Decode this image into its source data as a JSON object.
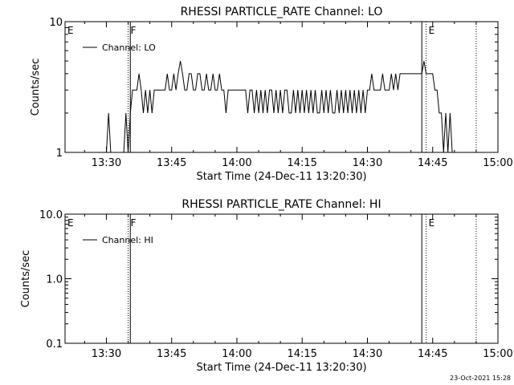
{
  "footer": {
    "timestamp": "23-Oct-2021 15:28"
  },
  "chart_data": [
    {
      "type": "line",
      "title": "RHESSI PARTICLE_RATE Channel: LO",
      "xlabel": "Start Time (24-Dec-11 13:20:30)",
      "ylabel": "Counts/sec",
      "yscale": "log",
      "ylim": [
        1,
        10
      ],
      "xlim": [
        "13:20:30",
        "15:00"
      ],
      "xticks": [
        "13:30",
        "13:45",
        "14:00",
        "14:15",
        "14:30",
        "14:45",
        "15:00"
      ],
      "yticks": [
        "1",
        "10"
      ],
      "legend": "Channel: LO",
      "legend_position": "top-left",
      "markers": [
        {
          "label": "E",
          "time": "13:20:30",
          "style": "dotted"
        },
        {
          "label": "F",
          "time": "13:35:00",
          "style": "dotted"
        },
        {
          "label": "",
          "time": "13:35:30",
          "style": "solid"
        },
        {
          "label": "",
          "time": "14:42:30",
          "style": "solid"
        },
        {
          "label": "E",
          "time": "14:43:30",
          "style": "dotted"
        },
        {
          "label": "",
          "time": "14:55:00",
          "style": "dotted"
        }
      ],
      "series": [
        {
          "name": "Channel: LO",
          "x": [
            "13:30:00",
            "13:30:30",
            "13:31:00",
            "13:34:00",
            "13:34:30",
            "13:35:00",
            "13:35:30",
            "13:36:00",
            "13:36:30",
            "13:37:00",
            "13:37:30",
            "13:38:00",
            "13:38:30",
            "13:39:00",
            "13:39:30",
            "13:40:00",
            "13:40:30",
            "13:41:00",
            "13:41:30",
            "13:42:00",
            "13:42:30",
            "13:43:00",
            "13:43:30",
            "13:44:00",
            "13:44:30",
            "13:45:00",
            "13:45:30",
            "13:46:00",
            "13:46:30",
            "13:47:00",
            "13:47:30",
            "13:48:00",
            "13:48:30",
            "13:49:00",
            "13:49:30",
            "13:50:00",
            "13:50:30",
            "13:51:00",
            "13:51:30",
            "13:52:00",
            "13:52:30",
            "13:53:00",
            "13:53:30",
            "13:54:00",
            "13:54:30",
            "13:55:00",
            "13:55:30",
            "13:56:00",
            "13:56:30",
            "13:57:00",
            "13:57:30",
            "13:58:00",
            "13:58:30",
            "13:59:00",
            "13:59:30",
            "14:00:00",
            "14:00:30",
            "14:01:00",
            "14:01:30",
            "14:02:00",
            "14:02:30",
            "14:03:00",
            "14:03:30",
            "14:04:00",
            "14:04:30",
            "14:05:00",
            "14:05:30",
            "14:06:00",
            "14:06:30",
            "14:07:00",
            "14:07:30",
            "14:08:00",
            "14:08:30",
            "14:09:00",
            "14:09:30",
            "14:10:00",
            "14:10:30",
            "14:11:00",
            "14:11:30",
            "14:12:00",
            "14:12:30",
            "14:13:00",
            "14:13:30",
            "14:14:00",
            "14:14:30",
            "14:15:00",
            "14:15:30",
            "14:16:00",
            "14:16:30",
            "14:17:00",
            "14:17:30",
            "14:18:00",
            "14:18:30",
            "14:19:00",
            "14:19:30",
            "14:20:00",
            "14:20:30",
            "14:21:00",
            "14:21:30",
            "14:22:00",
            "14:22:30",
            "14:23:00",
            "14:23:30",
            "14:24:00",
            "14:24:30",
            "14:25:00",
            "14:25:30",
            "14:26:00",
            "14:26:30",
            "14:27:00",
            "14:27:30",
            "14:28:00",
            "14:28:30",
            "14:29:00",
            "14:29:30",
            "14:30:00",
            "14:30:30",
            "14:31:00",
            "14:31:30",
            "14:32:00",
            "14:32:30",
            "14:33:00",
            "14:33:30",
            "14:34:00",
            "14:34:30",
            "14:35:00",
            "14:35:30",
            "14:36:00",
            "14:36:30",
            "14:37:00",
            "14:37:30",
            "14:38:00",
            "14:38:30",
            "14:39:00",
            "14:39:30",
            "14:40:00",
            "14:40:30",
            "14:41:00",
            "14:41:30",
            "14:42:00",
            "14:42:30",
            "14:43:00",
            "14:43:30",
            "14:44:00",
            "14:44:30",
            "14:45:00",
            "14:45:30",
            "14:46:00",
            "14:46:30",
            "14:47:00",
            "14:47:30",
            "14:48:00",
            "14:48:30",
            "14:49:00",
            "14:49:30",
            "14:50:00",
            "14:50:30"
          ],
          "y": [
            1,
            2,
            1,
            1,
            2,
            1,
            2,
            3,
            3,
            3,
            4,
            3,
            2,
            3,
            2,
            3,
            2,
            3,
            3,
            3,
            3,
            3,
            3,
            4,
            3,
            3,
            4,
            3,
            4,
            5,
            4,
            3,
            3,
            4,
            4,
            3,
            3,
            4,
            4,
            3,
            3,
            4,
            3,
            3,
            4,
            3,
            3,
            4,
            3,
            3,
            2,
            3,
            3,
            3,
            3,
            3,
            3,
            3,
            3,
            3,
            2,
            3,
            3,
            2,
            3,
            2,
            3,
            2,
            3,
            2,
            3,
            3,
            2,
            3,
            2,
            3,
            2,
            3,
            3,
            2,
            2,
            3,
            2,
            3,
            2,
            3,
            2,
            3,
            2,
            3,
            2,
            3,
            2,
            2,
            3,
            2,
            3,
            2,
            3,
            2,
            2,
            3,
            2,
            3,
            2,
            3,
            2,
            3,
            2,
            3,
            2,
            3,
            2,
            3,
            2,
            3,
            3,
            4,
            3,
            3,
            3,
            3,
            4,
            3,
            3,
            3,
            4,
            3,
            4,
            3,
            4,
            4,
            4,
            4,
            4,
            4,
            4,
            4,
            4,
            4,
            4,
            5,
            4,
            4,
            4,
            4,
            3,
            3,
            2,
            2,
            1,
            2,
            1,
            2,
            1,
            1,
            1
          ]
        }
      ]
    },
    {
      "type": "line",
      "title": "RHESSI PARTICLE_RATE Channel: HI",
      "xlabel": "Start Time (24-Dec-11 13:20:30)",
      "ylabel": "Counts/sec",
      "yscale": "log",
      "ylim": [
        0.1,
        10
      ],
      "xlim": [
        "13:20:30",
        "15:00"
      ],
      "xticks": [
        "13:30",
        "13:45",
        "14:00",
        "14:15",
        "14:30",
        "14:45",
        "15:00"
      ],
      "yticks": [
        "0.1",
        "1.0",
        "10.0"
      ],
      "legend": "Channel: HI",
      "legend_position": "top-left",
      "markers": [
        {
          "label": "E",
          "time": "13:20:30",
          "style": "dotted"
        },
        {
          "label": "F",
          "time": "13:35:00",
          "style": "dotted"
        },
        {
          "label": "",
          "time": "13:35:30",
          "style": "solid"
        },
        {
          "label": "",
          "time": "14:42:30",
          "style": "solid"
        },
        {
          "label": "E",
          "time": "14:43:30",
          "style": "dotted"
        },
        {
          "label": "",
          "time": "14:55:00",
          "style": "dotted"
        }
      ],
      "series": [
        {
          "name": "Channel: HI",
          "x": [],
          "y": []
        }
      ]
    }
  ]
}
